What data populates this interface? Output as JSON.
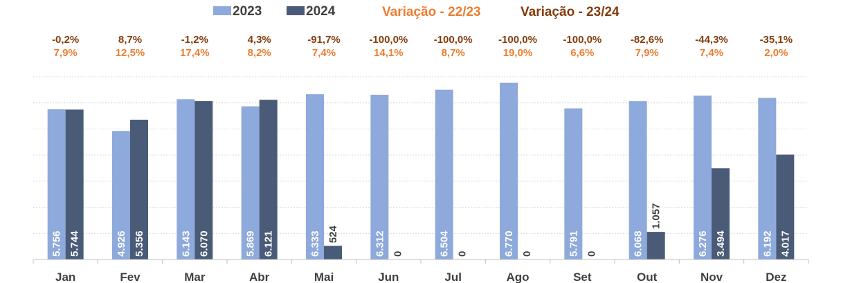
{
  "legend": {
    "series_2023": "2023",
    "series_2024": "2024",
    "var_22_23": "Variação - 22/23",
    "var_23_24": "Variação - 23/24"
  },
  "colors": {
    "bar_2023": "#8EA9DB",
    "bar_2024": "#4A5B78",
    "var_22_23_text": "#ED7D31",
    "var_23_24_text": "#843C0C",
    "value_label_inside": "#ffffff",
    "value_label_outside": "#404040",
    "axis": "#BFBFBF",
    "grid": "#D9D9D9"
  },
  "chart_data": {
    "type": "bar",
    "categories": [
      "Jan",
      "Fev",
      "Mar",
      "Abr",
      "Mai",
      "Jun",
      "Jul",
      "Ago",
      "Set",
      "Out",
      "Nov",
      "Dez"
    ],
    "series": [
      {
        "name": "2023",
        "values": [
          5756,
          4926,
          6143,
          5869,
          6333,
          6312,
          6504,
          6770,
          5791,
          6068,
          6276,
          6192
        ],
        "labels": [
          "5.756",
          "4.926",
          "6.143",
          "5.869",
          "6.333",
          "6.312",
          "6.504",
          "6.770",
          "5.791",
          "6.068",
          "6.276",
          "6.192"
        ]
      },
      {
        "name": "2024",
        "values": [
          5744,
          5356,
          6070,
          6121,
          524,
          0,
          0,
          0,
          0,
          1057,
          3494,
          4017
        ],
        "labels": [
          "5.744",
          "5.356",
          "6.070",
          "6.121",
          "524",
          "0",
          "0",
          "0",
          "0",
          "1.057",
          "3.494",
          "4.017"
        ]
      }
    ],
    "variacao_23_24": [
      "-0,2%",
      "8,7%",
      "-1,2%",
      "4,3%",
      "-91,7%",
      "-100,0%",
      "-100,0%",
      "-100,0%",
      "-100,0%",
      "-82,6%",
      "-44,3%",
      "-35,1%"
    ],
    "variacao_22_23": [
      "7,9%",
      "12,5%",
      "17,4%",
      "8,2%",
      "7,4%",
      "14,1%",
      "8,7%",
      "19,0%",
      "6,6%",
      "7,9%",
      "7,4%",
      "2,0%"
    ],
    "ylim": [
      0,
      7000
    ],
    "grid": true,
    "legend_position": "top"
  }
}
